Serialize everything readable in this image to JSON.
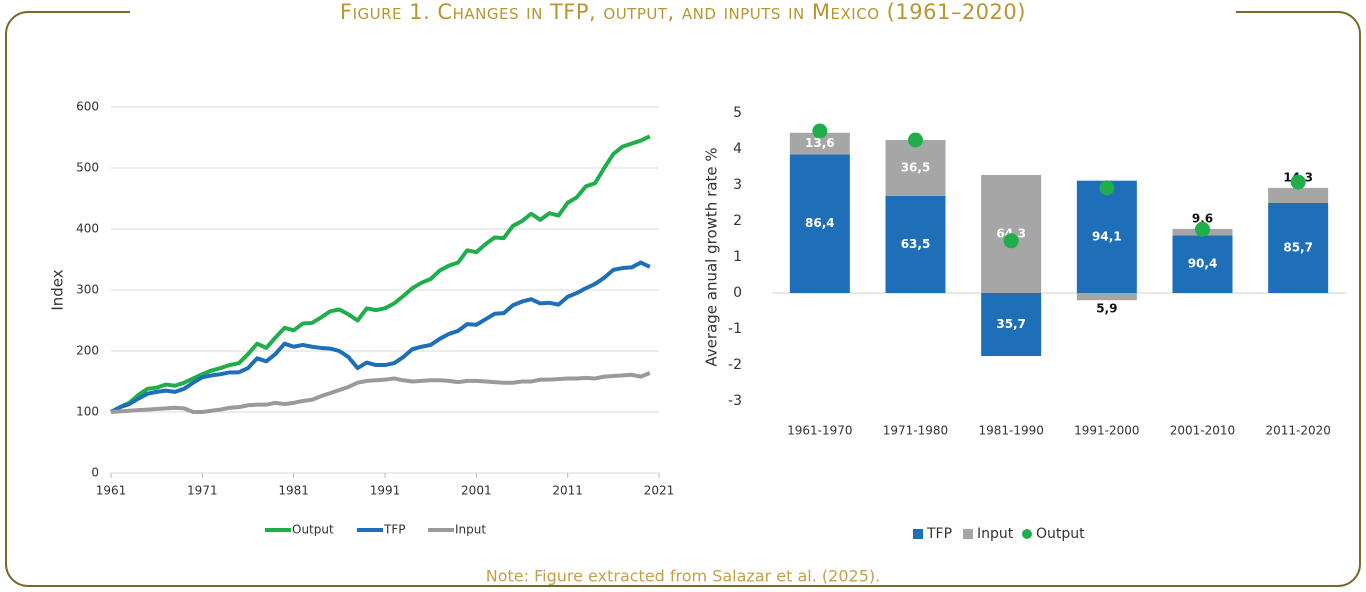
{
  "figure_title": "Figure 1. Changes in TFP, output, and inputs in Mexico (1961–2020)",
  "note": "Note: Figure extracted from Salazar et al. (2025).",
  "chart_data": [
    {
      "type": "line",
      "ylabel": "Index",
      "x": [
        1961,
        1962,
        1963,
        1964,
        1965,
        1966,
        1967,
        1968,
        1969,
        1970,
        1971,
        1972,
        1973,
        1974,
        1975,
        1976,
        1977,
        1978,
        1979,
        1980,
        1981,
        1982,
        1983,
        1984,
        1985,
        1986,
        1987,
        1988,
        1989,
        1990,
        1991,
        1992,
        1993,
        1994,
        1995,
        1996,
        1997,
        1998,
        1999,
        2000,
        2001,
        2002,
        2003,
        2004,
        2005,
        2006,
        2007,
        2008,
        2009,
        2010,
        2011,
        2012,
        2013,
        2014,
        2015,
        2016,
        2017,
        2018,
        2019,
        2020
      ],
      "xlim": [
        1961,
        2021
      ],
      "xticks": [
        1961,
        1971,
        1981,
        1991,
        2001,
        2011,
        2021
      ],
      "ylim": [
        0,
        600
      ],
      "yticks": [
        0,
        100,
        200,
        300,
        400,
        500,
        600
      ],
      "grid": true,
      "legend": "bottom",
      "series": [
        {
          "name": "Output",
          "color": "#1fae4b",
          "values": [
            100,
            108,
            115,
            128,
            138,
            140,
            145,
            143,
            148,
            155,
            162,
            168,
            172,
            177,
            180,
            195,
            212,
            205,
            222,
            238,
            234,
            245,
            246,
            255,
            265,
            268,
            260,
            250,
            270,
            267,
            270,
            278,
            290,
            303,
            312,
            318,
            332,
            340,
            345,
            365,
            362,
            375,
            386,
            385,
            405,
            413,
            425,
            415,
            426,
            422,
            443,
            452,
            470,
            475,
            500,
            523,
            535,
            540,
            545,
            552
          ]
        },
        {
          "name": "TFP",
          "color": "#1f6fb8",
          "values": [
            100,
            108,
            113,
            122,
            130,
            133,
            135,
            133,
            138,
            148,
            157,
            160,
            162,
            165,
            165,
            172,
            188,
            183,
            195,
            212,
            207,
            210,
            207,
            205,
            204,
            200,
            190,
            172,
            181,
            177,
            177,
            180,
            190,
            203,
            207,
            210,
            220,
            228,
            233,
            244,
            243,
            252,
            261,
            262,
            275,
            281,
            285,
            278,
            279,
            276,
            289,
            295,
            303,
            310,
            320,
            333,
            336,
            337,
            345,
            338
          ]
        },
        {
          "name": "Input",
          "color": "#9a9a9a",
          "values": [
            100,
            101,
            102,
            103,
            104,
            105,
            106,
            107,
            106,
            100,
            100,
            102,
            104,
            107,
            108,
            111,
            112,
            112,
            115,
            113,
            115,
            118,
            120,
            126,
            131,
            136,
            141,
            148,
            151,
            152,
            153,
            155,
            152,
            150,
            151,
            152,
            152,
            151,
            149,
            151,
            151,
            150,
            149,
            148,
            148,
            150,
            150,
            153,
            153,
            154,
            155,
            155,
            156,
            155,
            158,
            159,
            160,
            161,
            158,
            164
          ]
        }
      ]
    },
    {
      "type": "stacked_bar",
      "ylabel": "Average anual growth rate %",
      "categories": [
        "1961-1970",
        "1971-1980",
        "1981-1990",
        "1991-2000",
        "2001-2010",
        "2011-2020"
      ],
      "ylim": [
        -3,
        5
      ],
      "yticks": [
        -3,
        -2,
        -1,
        0,
        1,
        2,
        3,
        4,
        5
      ],
      "grid": false,
      "legend": "bottom",
      "series": [
        {
          "name": "TFP",
          "color": "#1f6fb8",
          "values": [
            3.85,
            2.7,
            -1.75,
            3.12,
            1.6,
            2.5
          ],
          "shares": [
            "86,4",
            "63,5",
            "35,7",
            "94,1",
            "90,4",
            "85,7"
          ]
        },
        {
          "name": "Input",
          "color": "#a6a6a6",
          "values": [
            0.6,
            1.55,
            3.28,
            -0.2,
            0.18,
            0.42
          ],
          "shares": [
            "13,6",
            "36,5",
            "64,3",
            "5,9",
            "9,6",
            "14,3"
          ]
        },
        {
          "name": "Output",
          "color": "#1fae4b",
          "kind": "dot",
          "values": [
            4.5,
            4.25,
            1.45,
            2.92,
            1.77,
            3.08
          ]
        }
      ]
    }
  ]
}
